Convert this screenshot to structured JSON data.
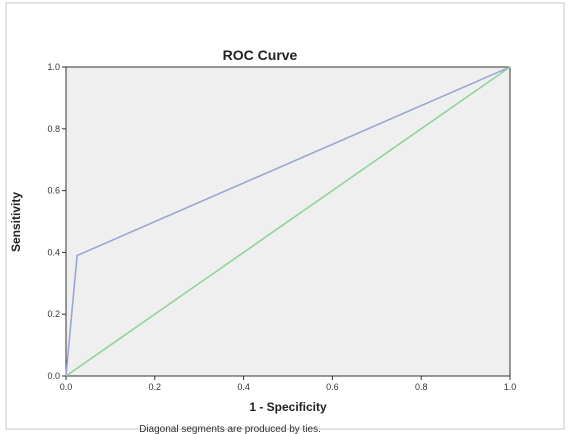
{
  "chart_data": {
    "type": "line",
    "title": "ROC Curve",
    "xlabel": "1 - Specificity",
    "ylabel": "Sensitivity",
    "xlim": [
      0,
      1
    ],
    "ylim": [
      0,
      1
    ],
    "x_ticks": [
      "0.0",
      "0.2",
      "0.4",
      "0.6",
      "0.8",
      "1.0"
    ],
    "y_ticks": [
      "0.0",
      "0.2",
      "0.4",
      "0.6",
      "0.8",
      "1.0"
    ],
    "grid": false,
    "series": [
      {
        "color": "#9aa6d6",
        "points": [
          [
            0,
            0
          ],
          [
            0.025,
            0.39
          ],
          [
            1,
            1
          ]
        ]
      },
      {
        "color": "#8fd49a",
        "points": [
          [
            0,
            0
          ],
          [
            1,
            1
          ]
        ]
      }
    ],
    "footnote": "Diagonal segments are produced by ties."
  },
  "colors": {
    "plot_background": "#efefef",
    "page_background": "#ffffff",
    "axis": "#333333"
  }
}
